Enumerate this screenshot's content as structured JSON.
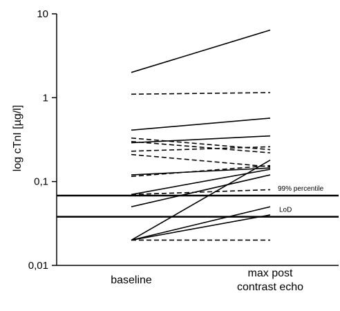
{
  "chart_data": {
    "type": "line",
    "title": "",
    "xlabel": "",
    "ylabel": "log cTnI [µg/l]",
    "yscale": "log",
    "ylim": [
      0.01,
      10
    ],
    "grid": false,
    "categories": [
      "baseline",
      "max post\ncontrast echo"
    ],
    "y_ticks": [
      {
        "value": 10,
        "label": "10"
      },
      {
        "value": 1,
        "label": "1"
      },
      {
        "value": 0.1,
        "label": "0,1"
      },
      {
        "value": 0.01,
        "label": "0,01"
      }
    ],
    "reference_lines": [
      {
        "label": "99% percentile",
        "value": 0.068
      },
      {
        "label": "LoD",
        "value": 0.038
      }
    ],
    "series": [
      {
        "values": [
          2.0,
          6.4
        ],
        "style": "solid"
      },
      {
        "values": [
          1.1,
          1.15
        ],
        "style": "dashed"
      },
      {
        "values": [
          0.41,
          0.57
        ],
        "style": "solid"
      },
      {
        "values": [
          0.33,
          0.24
        ],
        "style": "dashed"
      },
      {
        "values": [
          0.3,
          0.22
        ],
        "style": "dashed"
      },
      {
        "values": [
          0.29,
          0.35
        ],
        "style": "solid"
      },
      {
        "values": [
          0.23,
          0.26
        ],
        "style": "dashed"
      },
      {
        "values": [
          0.21,
          0.15
        ],
        "style": "dashed"
      },
      {
        "values": [
          0.12,
          0.145
        ],
        "style": "solid"
      },
      {
        "values": [
          0.115,
          0.155
        ],
        "style": "dashed"
      },
      {
        "values": [
          0.07,
          0.14
        ],
        "style": "solid"
      },
      {
        "values": [
          0.07,
          0.08
        ],
        "style": "dashed"
      },
      {
        "values": [
          0.05,
          0.12
        ],
        "style": "solid"
      },
      {
        "values": [
          0.02,
          0.18
        ],
        "style": "solid"
      },
      {
        "values": [
          0.02,
          0.05
        ],
        "style": "solid"
      },
      {
        "values": [
          0.02,
          0.04
        ],
        "style": "solid"
      },
      {
        "values": [
          0.02,
          0.02
        ],
        "style": "dashed"
      }
    ]
  }
}
